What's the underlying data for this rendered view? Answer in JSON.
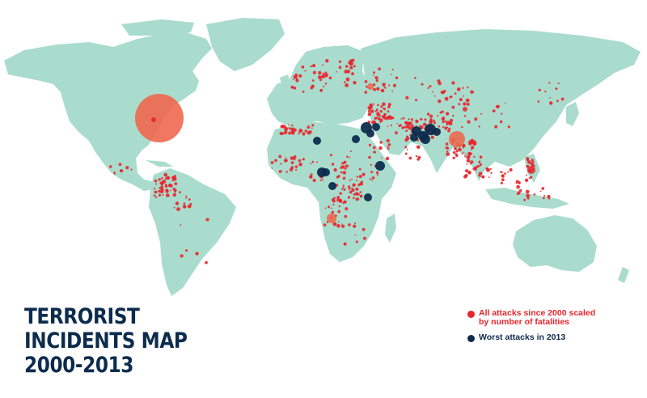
{
  "title_lines": [
    "TERRORIST",
    "INCIDENTS MAP",
    "2000-2013"
  ],
  "legend": [
    {
      "lines": [
        "All attacks since 2000 scaled",
        "by number of fatalities"
      ],
      "color": "#e8242c",
      "icon": "red-dot-icon"
    },
    {
      "lines": [
        "Worst attacks in 2013"
      ],
      "color": "#0d2c4d",
      "icon": "navy-dot-icon"
    }
  ],
  "colors": {
    "land": "#a9dccc",
    "ocean": "#ffffff",
    "all_attacks": "#e8242c",
    "largest_attack": "#f0644a",
    "worst_2013": "#0d2c4d"
  }
}
